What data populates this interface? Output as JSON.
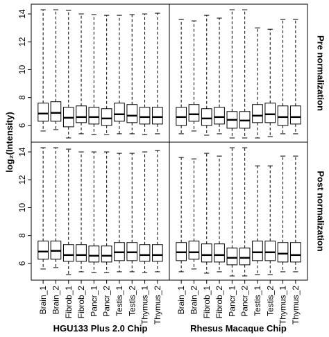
{
  "chart_data": {
    "type": "box",
    "ylabel": "log₂(Intensity)",
    "row_labels": [
      "Pre normalization",
      "Post normalization"
    ],
    "ylim": [
      4.8,
      14.7
    ],
    "yticks": [
      6,
      8,
      10,
      12,
      14
    ],
    "color": "#000000",
    "panels": [
      {
        "xlabel": "HGU133 Plus 2.0 Chip",
        "categories": [
          "Brain_1",
          "Brain_2",
          "Fibrob_1",
          "Fibrob_2",
          "Pancr_1",
          "Pancr_2",
          "Testis_1",
          "Testis_2",
          "Thymus_1",
          "Thymus_2"
        ],
        "rows": [
          {
            "whisker_low": [
              5.6,
              5.7,
              5.1,
              5.4,
              5.35,
              5.35,
              5.4,
              5.4,
              5.35,
              5.4
            ],
            "q1": [
              6.3,
              6.3,
              5.9,
              6.2,
              6.1,
              6.0,
              6.3,
              6.2,
              6.1,
              6.1
            ],
            "median": [
              6.85,
              6.9,
              6.55,
              6.6,
              6.6,
              6.5,
              6.8,
              6.7,
              6.6,
              6.6
            ],
            "q3": [
              7.6,
              7.7,
              7.3,
              7.4,
              7.3,
              7.2,
              7.6,
              7.5,
              7.3,
              7.3
            ],
            "whisker_high": [
              14.3,
              14.3,
              14.25,
              14.0,
              13.95,
              13.9,
              13.9,
              13.95,
              14.0,
              14.05
            ]
          },
          {
            "whisker_low": [
              5.6,
              5.7,
              5.2,
              5.4,
              5.35,
              5.35,
              5.4,
              5.4,
              5.35,
              5.4
            ],
            "q1": [
              6.3,
              6.3,
              6.15,
              6.15,
              6.1,
              6.1,
              6.2,
              6.2,
              6.15,
              6.15
            ],
            "median": [
              6.85,
              6.9,
              6.6,
              6.6,
              6.55,
              6.55,
              6.8,
              6.8,
              6.6,
              6.6
            ],
            "q3": [
              7.6,
              7.6,
              7.35,
              7.35,
              7.25,
              7.25,
              7.5,
              7.5,
              7.35,
              7.35
            ],
            "whisker_high": [
              14.3,
              14.3,
              14.2,
              14.0,
              14.0,
              14.0,
              13.9,
              13.9,
              14.0,
              14.1
            ]
          }
        ]
      },
      {
        "xlabel": "Rhesus Macaque Chip",
        "categories": [
          "Brain_1",
          "Brain_2",
          "Fibrob_1",
          "Fibrob_2",
          "Pancr_1",
          "Pancr_2",
          "Testis_1",
          "Testis_2",
          "Thymus_1",
          "Thymus_2"
        ],
        "rows": [
          {
            "whisker_low": [
              5.4,
              5.6,
              5.3,
              5.4,
              5.1,
              5.1,
              5.1,
              5.2,
              5.4,
              5.4
            ],
            "q1": [
              6.0,
              6.3,
              6.0,
              6.1,
              5.8,
              5.8,
              6.2,
              6.2,
              6.0,
              6.1
            ],
            "median": [
              6.6,
              6.8,
              6.5,
              6.6,
              6.4,
              6.35,
              6.7,
              6.8,
              6.6,
              6.6
            ],
            "q3": [
              7.3,
              7.5,
              7.2,
              7.3,
              7.0,
              7.0,
              7.5,
              7.6,
              7.4,
              7.4
            ],
            "whisker_high": [
              13.6,
              13.5,
              13.9,
              13.7,
              14.3,
              14.3,
              13.0,
              12.9,
              13.6,
              13.6
            ]
          },
          {
            "whisker_low": [
              5.4,
              5.6,
              5.3,
              5.4,
              5.1,
              5.1,
              5.2,
              5.2,
              5.4,
              5.4
            ],
            "q1": [
              6.2,
              6.3,
              6.1,
              6.1,
              5.9,
              5.9,
              6.2,
              6.2,
              6.1,
              6.1
            ],
            "median": [
              6.8,
              6.8,
              6.6,
              6.6,
              6.4,
              6.4,
              6.8,
              6.8,
              6.7,
              6.6
            ],
            "q3": [
              7.5,
              7.6,
              7.4,
              7.4,
              7.1,
              7.1,
              7.6,
              7.6,
              7.5,
              7.5
            ],
            "whisker_high": [
              13.6,
              13.5,
              13.9,
              13.7,
              14.3,
              14.3,
              13.0,
              13.0,
              13.7,
              13.7
            ]
          }
        ]
      }
    ]
  }
}
